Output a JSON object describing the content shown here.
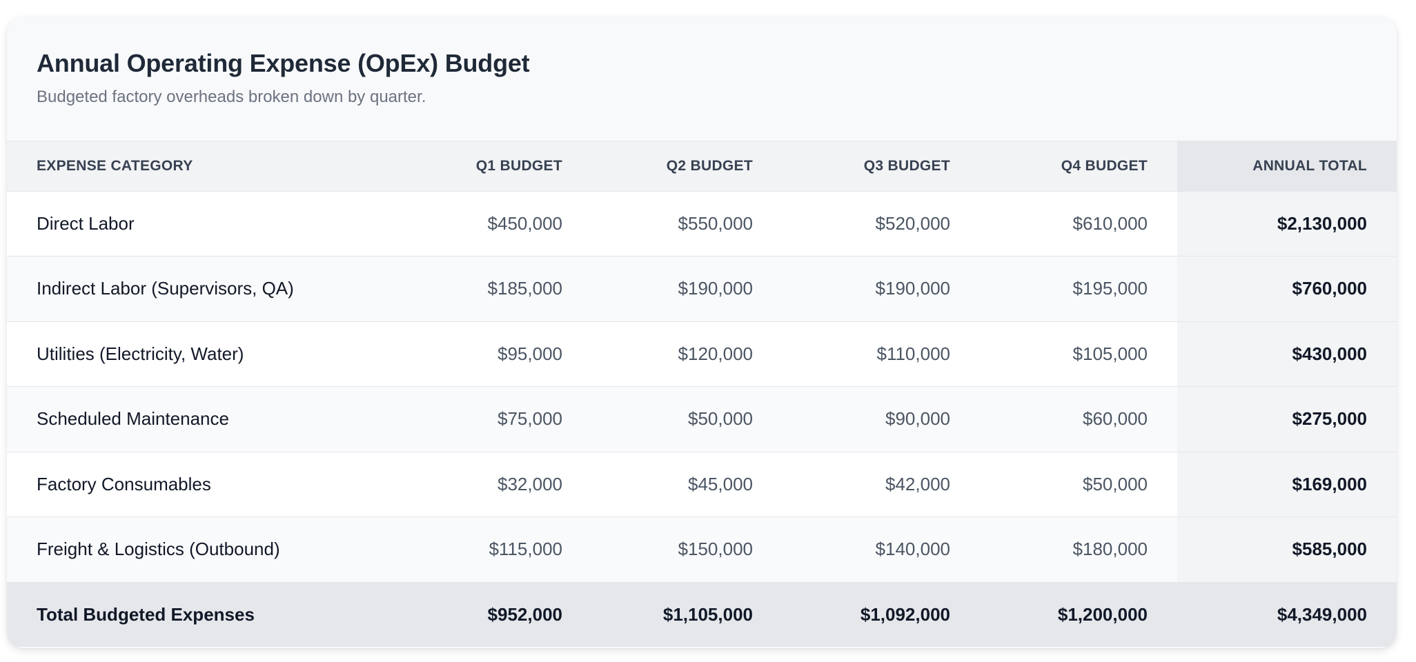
{
  "header": {
    "title": "Annual Operating Expense (OpEx) Budget",
    "subtitle": "Budgeted factory overheads broken down by quarter."
  },
  "table": {
    "columns": [
      "Expense Category",
      "Q1 Budget",
      "Q2 Budget",
      "Q3 Budget",
      "Q4 Budget",
      "Annual Total"
    ],
    "rows": [
      {
        "category": "Direct Labor",
        "q1": "$450,000",
        "q2": "$550,000",
        "q3": "$520,000",
        "q4": "$610,000",
        "total": "$2,130,000"
      },
      {
        "category": "Indirect Labor (Supervisors, QA)",
        "q1": "$185,000",
        "q2": "$190,000",
        "q3": "$190,000",
        "q4": "$195,000",
        "total": "$760,000"
      },
      {
        "category": "Utilities (Electricity, Water)",
        "q1": "$95,000",
        "q2": "$120,000",
        "q3": "$110,000",
        "q4": "$105,000",
        "total": "$430,000"
      },
      {
        "category": "Scheduled Maintenance",
        "q1": "$75,000",
        "q2": "$50,000",
        "q3": "$90,000",
        "q4": "$60,000",
        "total": "$275,000"
      },
      {
        "category": "Factory Consumables",
        "q1": "$32,000",
        "q2": "$45,000",
        "q3": "$42,000",
        "q4": "$50,000",
        "total": "$169,000"
      },
      {
        "category": "Freight & Logistics (Outbound)",
        "q1": "$115,000",
        "q2": "$150,000",
        "q3": "$140,000",
        "q4": "$180,000",
        "total": "$585,000"
      }
    ],
    "footer": {
      "label": "Total Budgeted Expenses",
      "q1": "$952,000",
      "q2": "$1,105,000",
      "q3": "$1,092,000",
      "q4": "$1,200,000",
      "total": "$4,349,000"
    }
  }
}
